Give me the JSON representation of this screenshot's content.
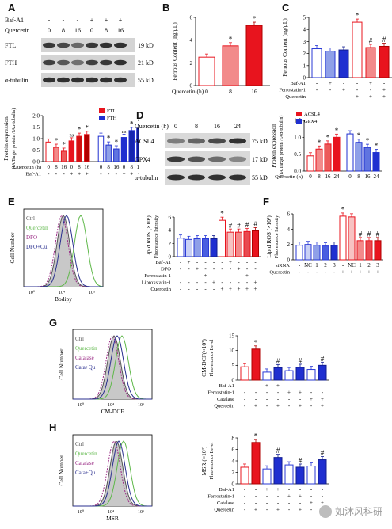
{
  "labels": {
    "A": "A",
    "B": "B",
    "C": "C",
    "D": "D",
    "E": "E",
    "F": "F",
    "G": "G",
    "H": "H"
  },
  "blotA": {
    "rows": [
      "Baf-A1",
      "Quercetin"
    ],
    "header_baf": [
      "-",
      "-",
      "-",
      "+",
      "+",
      "+"
    ],
    "header_q": [
      "0",
      "8",
      "16",
      "0",
      "8",
      "16"
    ],
    "header_q_label": "Quercetin (h)",
    "bands": [
      {
        "name": "FTL",
        "kda": "19 kD"
      },
      {
        "name": "FTH",
        "kda": "21 kD"
      },
      {
        "name": "α-tubulin",
        "kda": "55 kD"
      }
    ]
  },
  "blotD": {
    "header_label": "Quercetin (h)",
    "header": [
      "0",
      "8",
      "16",
      "24"
    ],
    "bands": [
      {
        "name": "ACSL4",
        "kda": "75 kD"
      },
      {
        "name": "GPX4",
        "kda": "17 kD"
      },
      {
        "name": "α-tubulin",
        "kda": "55 kD"
      }
    ]
  },
  "chart_data": [
    {
      "id": "B",
      "type": "bar",
      "ylabel": "Ferrous Content (ng/μL)",
      "xlabel": "Quercetin (h)",
      "categories": [
        "0",
        "8",
        "16"
      ],
      "values": [
        2.5,
        3.5,
        5.3
      ],
      "ylim": [
        0,
        6
      ],
      "yticks": [
        0,
        2,
        4,
        6
      ],
      "stars": [
        "",
        "*",
        "*"
      ],
      "colors": [
        "#ffffff",
        "#f28a8a",
        "#e8141e"
      ],
      "edges": [
        "#e8141e",
        "#e8141e",
        "#b00000"
      ]
    },
    {
      "id": "C",
      "type": "bar",
      "ylabel": "Ferrous Content (ng/μL)",
      "ylim": [
        0,
        5
      ],
      "yticks": [
        0,
        1,
        2,
        3,
        4,
        5
      ],
      "values": [
        2.4,
        2.2,
        2.3,
        4.6,
        2.5,
        2.6
      ],
      "marks": [
        "",
        "",
        "",
        "*",
        "#",
        "#"
      ],
      "colors": [
        "#ffffff",
        "#8fa0e8",
        "#1f2fd0",
        "#ffffff",
        "#f28a8a",
        "#e8141e"
      ],
      "edges": [
        "#2a3ad6",
        "#2a3ad6",
        "#101c90",
        "#e8141e",
        "#e8141e",
        "#b00000"
      ],
      "rows": [
        {
          "label": "Baf-A1",
          "signs": [
            "-",
            "+",
            "-",
            "-",
            "+",
            "-"
          ]
        },
        {
          "label": "Ferrostatin-1",
          "signs": [
            "-",
            "-",
            "+",
            "-",
            "-",
            "+"
          ]
        },
        {
          "label": "Quercetin",
          "signs": [
            "-",
            "-",
            "-",
            "+",
            "+",
            "+"
          ]
        }
      ]
    },
    {
      "id": "A2",
      "type": "bar",
      "ylabel": "Protein expression",
      "ylabel2": "(IA Target protein /IAα-tubulin)",
      "ylim": [
        0,
        2.0
      ],
      "yticks": [
        "0.0",
        "0.5",
        "1.0",
        "1.5",
        "2.0"
      ],
      "series": [
        {
          "name": "FTL",
          "color": "#e8141e",
          "values": [
            0.85,
            0.62,
            0.45,
            0.9,
            1.1,
            1.18
          ]
        },
        {
          "name": "FTH",
          "color": "#1f2fd0",
          "values": [
            1.1,
            0.72,
            0.55,
            1.05,
            1.35,
            1.45
          ]
        }
      ],
      "marks": [
        "",
        "*",
        "*",
        "ns",
        "*",
        "*",
        "",
        "*",
        "*",
        "ns",
        "*",
        "*"
      ],
      "rows": [
        {
          "label": "Quercetin (h)",
          "signs": [
            "0",
            "8",
            "16",
            "0",
            "8",
            "16",
            "0",
            "8",
            "16",
            "0",
            "8",
            "16"
          ]
        },
        {
          "label": "Baf-A1",
          "signs": [
            "-",
            "-",
            "-",
            "+",
            "+",
            "+",
            "-",
            "-",
            "-",
            "+",
            "+",
            "+"
          ]
        }
      ]
    },
    {
      "id": "D2",
      "type": "bar",
      "ylabel": "Protein expression",
      "ylabel2": "(IA Target protein /IAα-tubulin)",
      "ylim": [
        0,
        1.5
      ],
      "yticks": [
        "0.0",
        "0.5",
        "1.0",
        "1.5"
      ],
      "series": [
        {
          "name": "ACSL4",
          "color": "#e8141e",
          "values": [
            0.45,
            0.65,
            0.8,
            1.0
          ]
        },
        {
          "name": "GPX4",
          "color": "#1f2fd0",
          "values": [
            1.1,
            0.85,
            0.7,
            0.55
          ]
        }
      ],
      "marks": [
        "",
        "*",
        "*",
        "*",
        "",
        "*",
        "*",
        "*"
      ],
      "rows": [
        {
          "label": "Quercetin (h)",
          "signs": [
            "0",
            "8",
            "16",
            "24",
            "0",
            "8",
            "16",
            "24"
          ]
        }
      ]
    },
    {
      "id": "E",
      "type": "bar",
      "ylabel": "Lipid ROS (×10³)",
      "ylabel2": "Fluorescence Intensity",
      "ylim": [
        0,
        6
      ],
      "yticks": [
        0,
        2,
        4,
        6
      ],
      "values": [
        2.8,
        2.6,
        2.7,
        2.7,
        2.7,
        5.5,
        3.7,
        3.7,
        3.8,
        3.9
      ],
      "marks": [
        "",
        "",
        "",
        "",
        "",
        "*",
        "#",
        "#",
        "#",
        "#"
      ],
      "colors": [
        "#ffffff",
        "#c9d0f5",
        "#8fa0e8",
        "#4a5ee0",
        "#1f2fd0",
        "#ffffff",
        "#f7c2c2",
        "#f28a8a",
        "#e84a50",
        "#e8141e"
      ],
      "edges": [
        "#2a3ad6",
        "#2a3ad6",
        "#2a3ad6",
        "#2a3ad6",
        "#101c90",
        "#e8141e",
        "#e8141e",
        "#e8141e",
        "#e8141e",
        "#b00000"
      ],
      "rows": [
        {
          "label": "Baf-A1",
          "signs": [
            "-",
            "+",
            "-",
            "-",
            "-",
            "-",
            "+",
            "-",
            "-",
            "-"
          ]
        },
        {
          "label": "DFO",
          "signs": [
            "-",
            "-",
            "+",
            "-",
            "-",
            "-",
            "-",
            "+",
            "-",
            "-"
          ]
        },
        {
          "label": "Ferrostatin-1",
          "signs": [
            "-",
            "-",
            "-",
            "+",
            "-",
            "-",
            "-",
            "-",
            "+",
            "-"
          ]
        },
        {
          "label": "Liproxstatin-1",
          "signs": [
            "-",
            "-",
            "-",
            "-",
            "+",
            "-",
            "-",
            "-",
            "-",
            "+"
          ]
        },
        {
          "label": "Quercetin",
          "signs": [
            "-",
            "-",
            "-",
            "-",
            "-",
            "+",
            "+",
            "+",
            "+",
            "+"
          ]
        }
      ]
    },
    {
      "id": "F",
      "type": "bar",
      "ylabel": "Lipid ROS (×10³)",
      "ylabel2": "Fluorescence Intensity",
      "ylim": [
        0,
        6
      ],
      "yticks": [
        0,
        2,
        4,
        6
      ],
      "values": [
        1.9,
        2.0,
        1.9,
        1.8,
        1.9,
        5.7,
        5.6,
        2.5,
        2.5,
        2.5
      ],
      "marks": [
        "",
        "",
        "",
        "",
        "",
        "*",
        "",
        "#",
        "#",
        "#"
      ],
      "colors": [
        "#ffffff",
        "#c9d0f5",
        "#8fa0e8",
        "#4a5ee0",
        "#1f2fd0",
        "#ffffff",
        "#f7c2c2",
        "#f28a8a",
        "#e84a50",
        "#e8141e"
      ],
      "edges": [
        "#2a3ad6",
        "#2a3ad6",
        "#2a3ad6",
        "#2a3ad6",
        "#101c90",
        "#e8141e",
        "#e8141e",
        "#e8141e",
        "#e8141e",
        "#b00000"
      ],
      "rows": [
        {
          "label": "siRNA",
          "signs": [
            "-",
            "NC",
            "1",
            "2",
            "3",
            "-",
            "NC",
            "1",
            "2",
            "3"
          ]
        },
        {
          "label": "Quercetin",
          "signs": [
            "-",
            "-",
            "-",
            "-",
            "-",
            "+",
            "+",
            "+",
            "+",
            "+"
          ]
        }
      ]
    },
    {
      "id": "G",
      "type": "bar",
      "ylabel": "CM-DCF(×10³)",
      "ylabel2": "Fluorescence Level",
      "ylim": [
        0,
        15
      ],
      "yticks": [
        0,
        5,
        10,
        15
      ],
      "values": [
        4.5,
        10.5,
        2.7,
        4.2,
        3.2,
        4.3,
        3.6,
        5.0
      ],
      "marks": [
        "",
        "*",
        "",
        "#",
        "",
        "#",
        "",
        "#"
      ],
      "colors": [
        "#ffffff",
        "#e8141e",
        "#ffffff",
        "#1f2fd0",
        "#ffffff",
        "#1f2fd0",
        "#ffffff",
        "#1f2fd0"
      ],
      "edges": [
        "#e8141e",
        "#b00000",
        "#2a3ad6",
        "#101c90",
        "#2a3ad6",
        "#101c90",
        "#2a3ad6",
        "#101c90"
      ],
      "rows": [
        {
          "label": "Baf-A1",
          "signs": [
            "-",
            "-",
            "+",
            "+",
            "-",
            "-",
            "-",
            "-"
          ]
        },
        {
          "label": "Ferrostatin-1",
          "signs": [
            "-",
            "-",
            "-",
            "-",
            "+",
            "+",
            "-",
            "-"
          ]
        },
        {
          "label": "Catalase",
          "signs": [
            "-",
            "-",
            "-",
            "-",
            "-",
            "-",
            "+",
            "+"
          ]
        },
        {
          "label": "Quercetin",
          "signs": [
            "-",
            "+",
            "-",
            "+",
            "-",
            "+",
            "-",
            "+"
          ]
        }
      ]
    },
    {
      "id": "H",
      "type": "bar",
      "ylabel": "MSR (×10³)",
      "ylabel2": "Fluorescence Level",
      "ylim": [
        0,
        8
      ],
      "yticks": [
        0,
        2,
        4,
        6,
        8
      ],
      "values": [
        2.9,
        7.2,
        2.6,
        4.6,
        3.3,
        2.9,
        3.1,
        4.2
      ],
      "marks": [
        "",
        "*",
        "",
        "#",
        "",
        "#",
        "",
        "#"
      ],
      "colors": [
        "#ffffff",
        "#e8141e",
        "#ffffff",
        "#1f2fd0",
        "#ffffff",
        "#1f2fd0",
        "#ffffff",
        "#1f2fd0"
      ],
      "edges": [
        "#e8141e",
        "#b00000",
        "#2a3ad6",
        "#101c90",
        "#2a3ad6",
        "#101c90",
        "#2a3ad6",
        "#101c90"
      ],
      "rows": [
        {
          "label": "Baf-A1",
          "signs": [
            "-",
            "-",
            "+",
            "+",
            "-",
            "-",
            "-",
            "-"
          ]
        },
        {
          "label": "Ferrostatin-1",
          "signs": [
            "-",
            "-",
            "-",
            "-",
            "+",
            "+",
            "-",
            "-"
          ]
        },
        {
          "label": "Catalase",
          "signs": [
            "-",
            "-",
            "-",
            "-",
            "-",
            "-",
            "+",
            "+"
          ]
        },
        {
          "label": "Quercetin",
          "signs": [
            "-",
            "+",
            "-",
            "+",
            "-",
            "+",
            "-",
            "+"
          ]
        }
      ]
    }
  ],
  "flow": [
    {
      "id": "E",
      "ylabel": "Cell Number",
      "xlabel": "Bodipy",
      "legend": [
        "Ctrl",
        "Quercetin",
        "DFO",
        "DFO+Qu"
      ],
      "colors": [
        "#555555",
        "#5fb84a",
        "#9b2c86",
        "#2a2f8f"
      ]
    },
    {
      "id": "G",
      "ylabel": "Cell Number",
      "xlabel": "CM-DCF",
      "legend": [
        "Ctrl",
        "Quercetin",
        "Catalase",
        "Cata+Qu"
      ],
      "colors": [
        "#555555",
        "#5fb84a",
        "#9b2c86",
        "#2a2f8f"
      ]
    },
    {
      "id": "H",
      "ylabel": "Cell Number",
      "xlabel": "MSR",
      "legend": [
        "Ctrl",
        "Quercetin",
        "Catalase",
        "Cata+Qu"
      ],
      "colors": [
        "#555555",
        "#5fb84a",
        "#9b2c86",
        "#2a2f8f"
      ]
    }
  ],
  "watermark": "如沐风科研"
}
